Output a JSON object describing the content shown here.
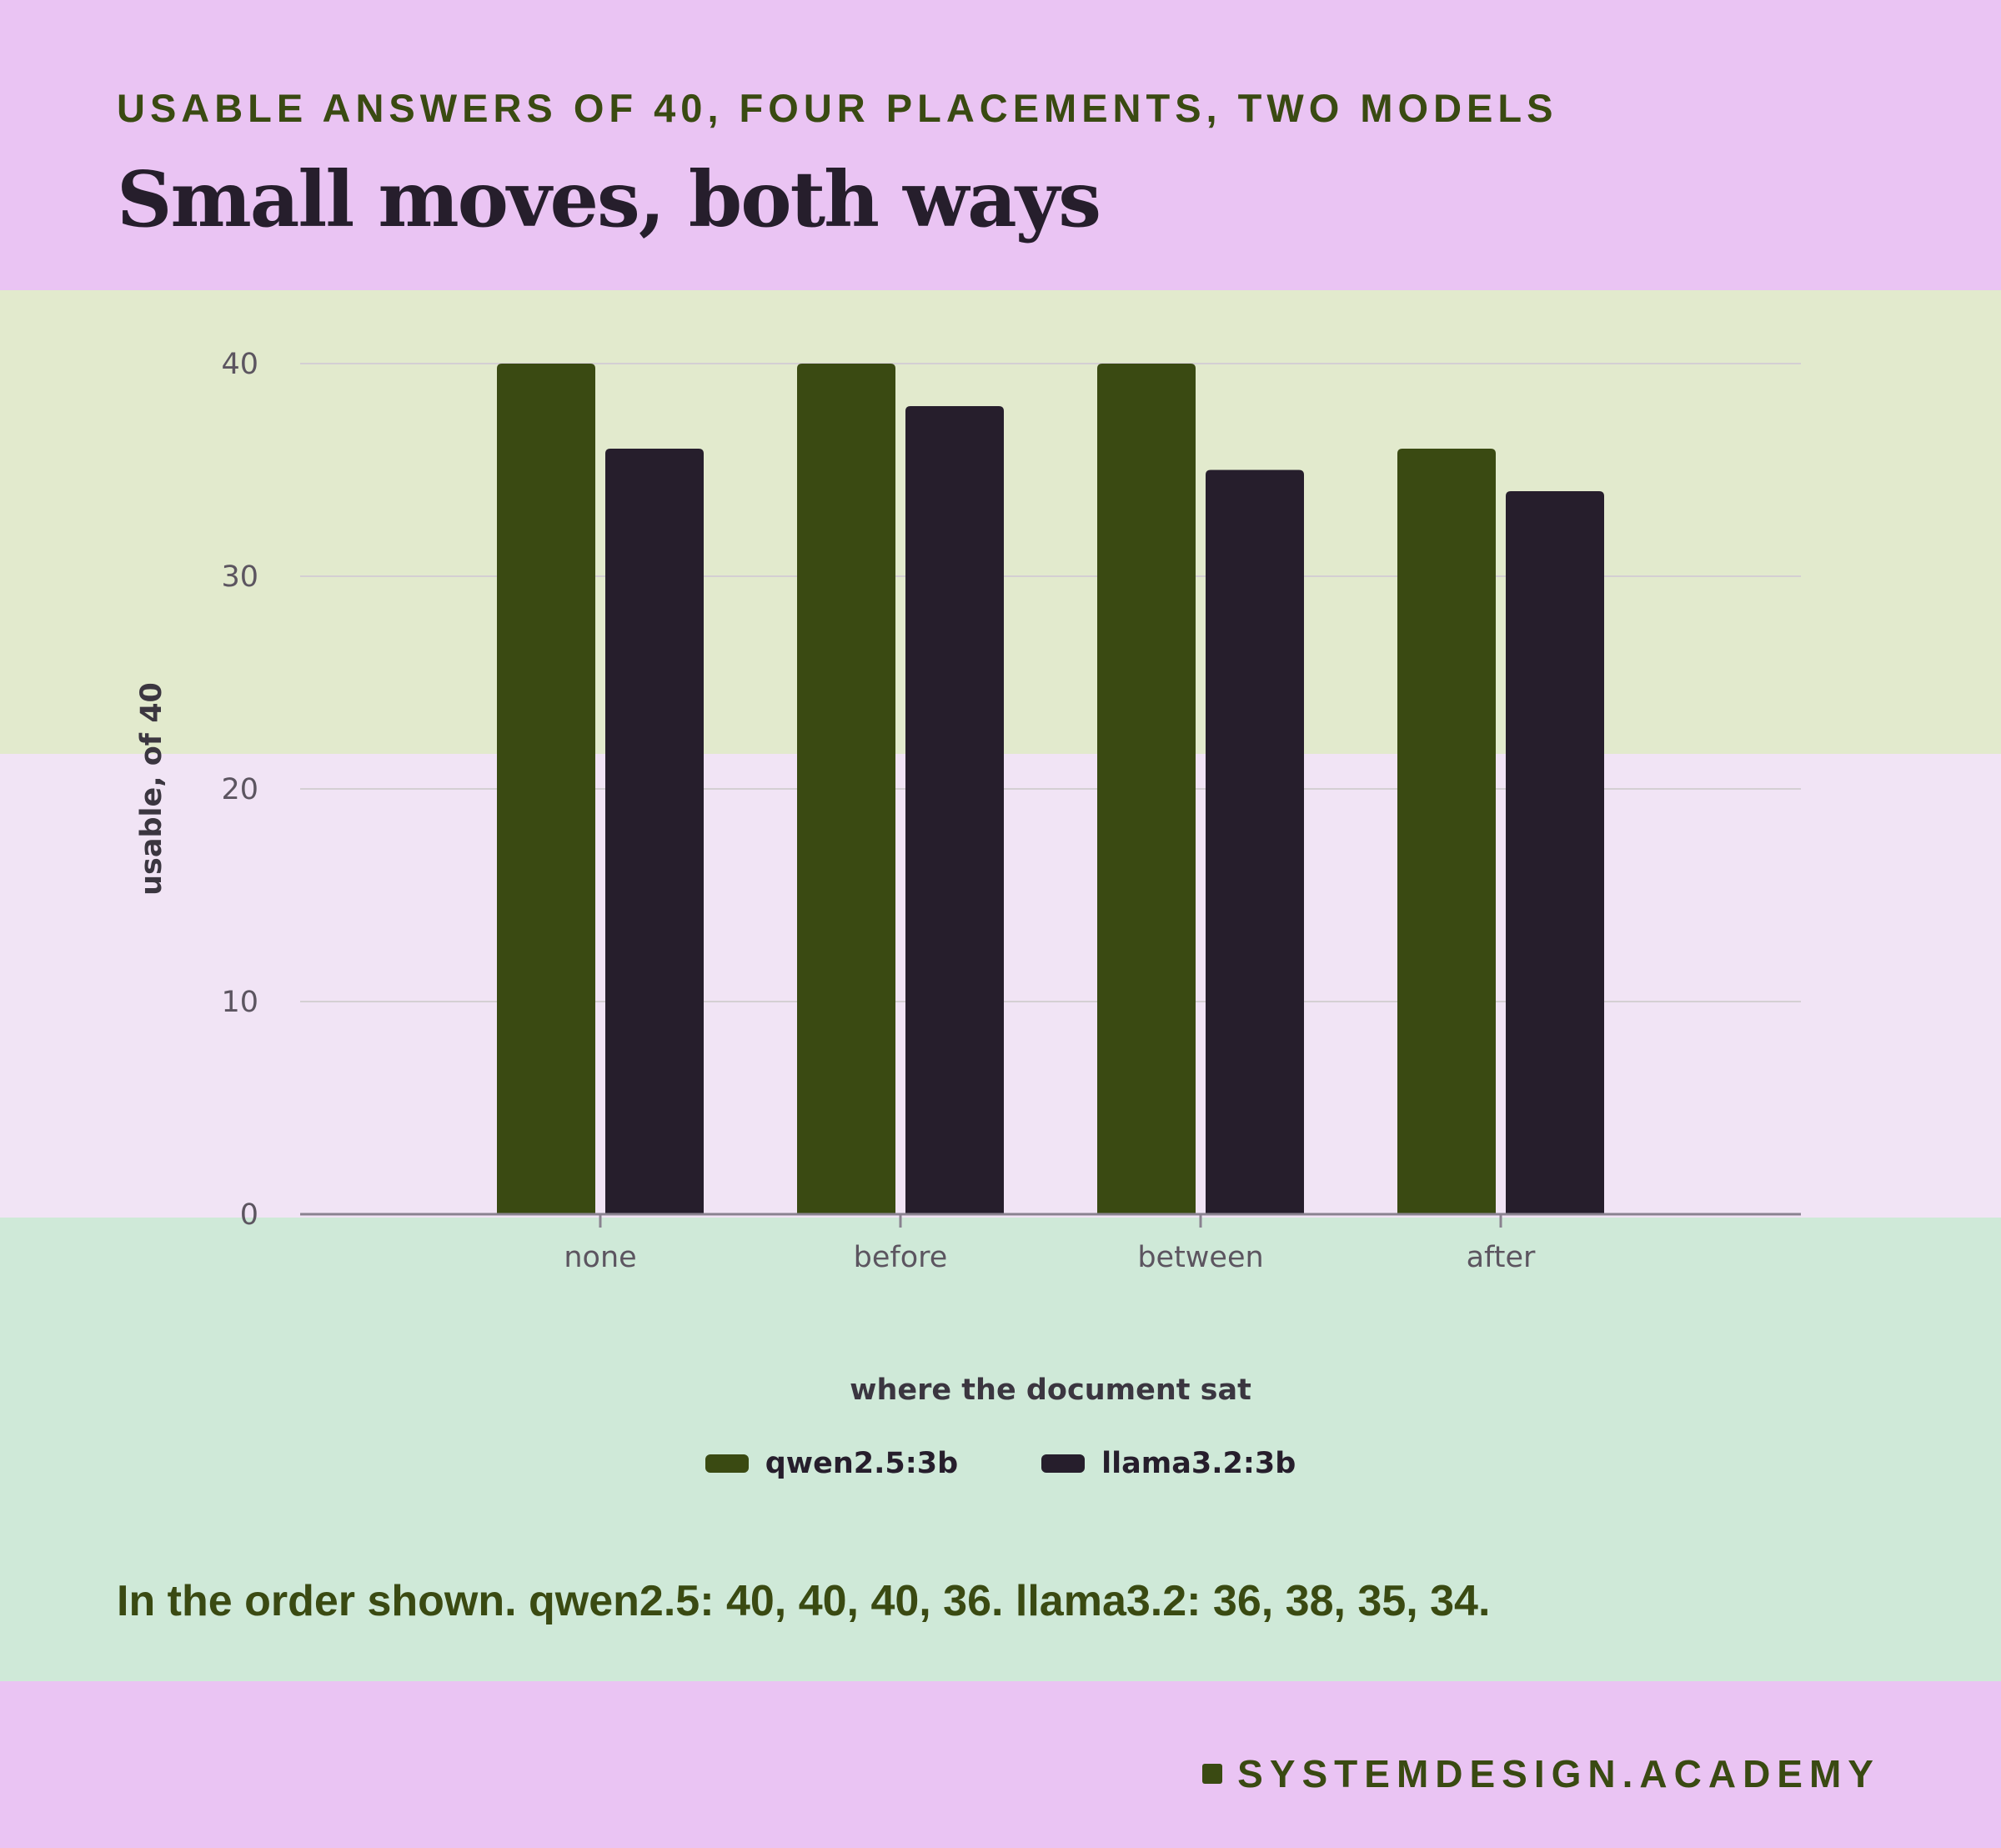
{
  "eyebrow": "USABLE ANSWERS OF 40, FOUR PLACEMENTS, TWO MODELS",
  "headline": "Small moves, both ways",
  "summary": "In the order shown. qwen2.5: 40, 40, 40, 36. llama3.2: 36, 38, 35, 34.",
  "brand": "SYSTEMDESIGN.ACADEMY",
  "colors": {
    "qwen": "#3a4a12",
    "llama": "#261e2c",
    "grid": "#d4cfd3",
    "axis": "#8a8290"
  },
  "chart_data": {
    "type": "bar",
    "categories": [
      "none",
      "before",
      "between",
      "after"
    ],
    "series": [
      {
        "name": "qwen2.5:3b",
        "values": [
          40,
          40,
          40,
          36
        ]
      },
      {
        "name": "llama3.2:3b",
        "values": [
          36,
          38,
          35,
          34
        ]
      }
    ],
    "xlabel": "where the document sat",
    "ylabel": "usable, of 40",
    "ylim": [
      0,
      40
    ],
    "yticks": [
      0,
      10,
      20,
      30,
      40
    ],
    "grid": true,
    "legend": "bottom-center"
  }
}
